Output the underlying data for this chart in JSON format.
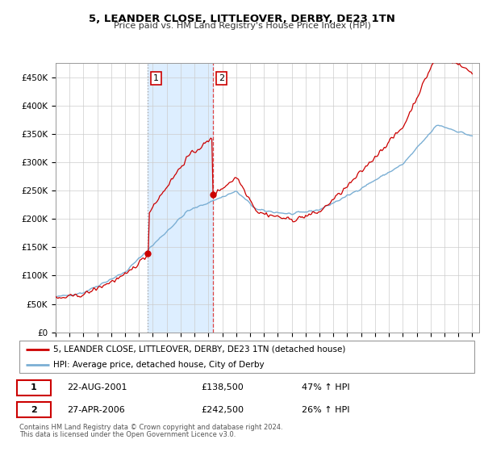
{
  "title": "5, LEANDER CLOSE, LITTLEOVER, DERBY, DE23 1TN",
  "subtitle": "Price paid vs. HM Land Registry's House Price Index (HPI)",
  "ylim": [
    0,
    475000
  ],
  "yticks": [
    0,
    50000,
    100000,
    150000,
    200000,
    250000,
    300000,
    350000,
    400000,
    450000
  ],
  "ytick_labels": [
    "£0",
    "£50K",
    "£100K",
    "£150K",
    "£200K",
    "£250K",
    "£300K",
    "£350K",
    "£400K",
    "£450K"
  ],
  "xlim_start": 1995,
  "xlim_end": 2025.5,
  "sale1_date": 2001.64,
  "sale1_price": 138500,
  "sale1_label": "1",
  "sale1_text": "22-AUG-2001",
  "sale1_amount": "£138,500",
  "sale1_hpi": "47% ↑ HPI",
  "sale2_date": 2006.32,
  "sale2_price": 242500,
  "sale2_label": "2",
  "sale2_text": "27-APR-2006",
  "sale2_amount": "£242,500",
  "sale2_hpi": "26% ↑ HPI",
  "property_color": "#cc0000",
  "hpi_color": "#7bafd4",
  "shade_color": "#ddeeff",
  "vline1_color": "#aaaaaa",
  "vline2_color": "#dd4444",
  "legend_property": "5, LEANDER CLOSE, LITTLEOVER, DERBY, DE23 1TN (detached house)",
  "legend_hpi": "HPI: Average price, detached house, City of Derby",
  "footer1": "Contains HM Land Registry data © Crown copyright and database right 2024.",
  "footer2": "This data is licensed under the Open Government Licence v3.0."
}
